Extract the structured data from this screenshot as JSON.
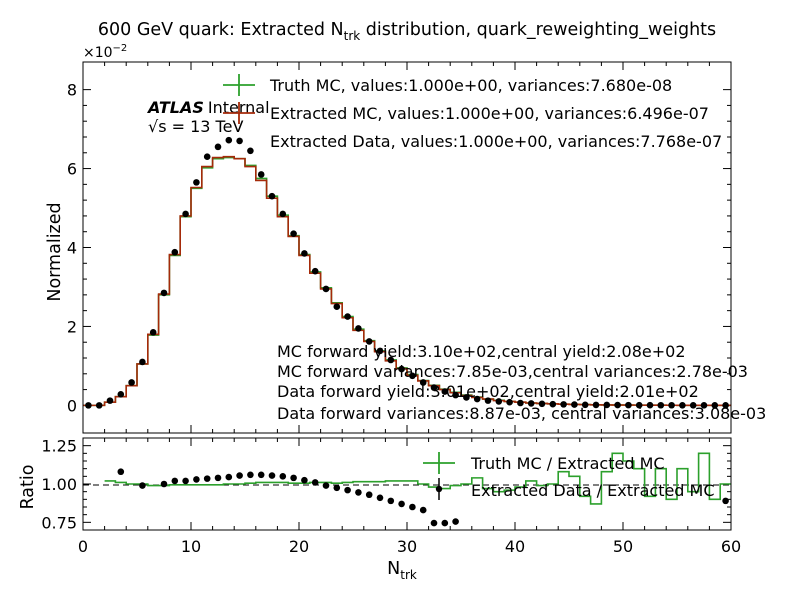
{
  "figure": {
    "title_pre": "600 GeV quark: Extracted N",
    "title_sub": "trk",
    "title_post": " distribution, quark_reweighting_weights",
    "exponent_base": "×10",
    "exponent_power": "−2",
    "atlas_label": "ATLAS",
    "atlas_status": "Internal",
    "energy_label": "√s = 13 TeV",
    "xlabel_main": "N",
    "xlabel_sub": "trk",
    "top_ylabel": "Normalized",
    "bottom_ylabel": "Ratio",
    "legend_top": [
      "Truth MC, values:1.000e+00, variances:7.680e-08",
      "Extracted MC, values:1.000e+00, variances:6.496e-07",
      "Extracted Data, values:1.000e+00, variances:7.768e-07"
    ],
    "legend_bottom": [
      "Truth MC / Extracted MC",
      "Extracted Data / Extracted MC"
    ],
    "annotations": [
      "MC forward yield:3.10e+02,central yield:2.08e+02",
      "MC forward variances:7.85e-03,central variances:2.78e-03",
      "Data forward yield:3.01e+02,central yield:2.01e+02",
      "Data forward variances:8.87e-03, central variances:3.08e-03"
    ]
  },
  "colors": {
    "truth_mc": "#2ca02c",
    "extracted_mc": "#a52a0a",
    "extracted_data": "#000000",
    "ref_line": "#000000"
  },
  "chart_data": [
    {
      "type": "line",
      "panel": "main",
      "x_bin_edges": [
        0,
        1,
        2,
        3,
        4,
        5,
        6,
        7,
        8,
        9,
        10,
        11,
        12,
        13,
        14,
        15,
        16,
        17,
        18,
        19,
        20,
        21,
        22,
        23,
        24,
        25,
        26,
        27,
        28,
        29,
        30,
        31,
        32,
        33,
        34,
        35,
        36,
        37,
        38,
        39,
        40,
        41,
        42,
        43,
        44,
        45,
        46,
        47,
        48,
        49,
        50,
        51,
        52,
        53,
        54,
        55,
        56,
        57,
        58,
        59,
        60
      ],
      "xlim": [
        0,
        60
      ],
      "ylim": [
        -0.7,
        8.7
      ],
      "y_scale_note": "×10^-2",
      "yticks": [
        0,
        2,
        4,
        6,
        8
      ],
      "xticks": [
        0,
        10,
        20,
        30,
        40,
        50,
        60
      ],
      "series": [
        {
          "name": "Truth MC",
          "style": "step",
          "values": [
            0,
            0,
            0.08,
            0.22,
            0.5,
            1.05,
            1.78,
            2.8,
            3.8,
            4.78,
            5.5,
            6.02,
            6.25,
            6.28,
            6.25,
            6.08,
            5.75,
            5.3,
            4.82,
            4.3,
            3.82,
            3.38,
            2.98,
            2.6,
            2.25,
            1.93,
            1.64,
            1.38,
            1.15,
            0.95,
            0.78,
            0.63,
            0.51,
            0.41,
            0.33,
            0.26,
            0.21,
            0.16,
            0.13,
            0.1,
            0.08,
            0.06,
            0.05,
            0.04,
            0.03,
            0.025,
            0.02,
            0.015,
            0.012,
            0.01,
            0.008,
            0.006,
            0.005,
            0.004,
            0.003,
            0.002,
            0.002,
            0.001,
            0.001,
            0.001
          ]
        },
        {
          "name": "Extracted MC",
          "style": "step",
          "values": [
            0,
            0,
            0.08,
            0.22,
            0.5,
            1.05,
            1.8,
            2.82,
            3.82,
            4.8,
            5.52,
            6.05,
            6.28,
            6.3,
            6.25,
            6.05,
            5.7,
            5.25,
            4.78,
            4.28,
            3.8,
            3.35,
            2.95,
            2.58,
            2.22,
            1.9,
            1.62,
            1.36,
            1.13,
            0.93,
            0.76,
            0.62,
            0.5,
            0.4,
            0.32,
            0.25,
            0.2,
            0.16,
            0.12,
            0.1,
            0.08,
            0.06,
            0.05,
            0.04,
            0.03,
            0.024,
            0.019,
            0.015,
            0.012,
            0.009,
            0.007,
            0.006,
            0.005,
            0.004,
            0.003,
            0.002,
            0.002,
            0.001,
            0.001,
            0.001
          ]
        },
        {
          "name": "Extracted Data",
          "style": "points",
          "values": [
            0,
            0,
            0.12,
            0.28,
            0.58,
            1.1,
            1.85,
            2.85,
            3.88,
            4.85,
            5.65,
            6.3,
            6.55,
            6.72,
            6.7,
            6.45,
            5.85,
            5.3,
            4.85,
            4.35,
            3.85,
            3.4,
            2.95,
            2.5,
            2.25,
            1.95,
            1.62,
            1.38,
            1.15,
            0.92,
            0.75,
            0.58,
            0.45,
            0.35,
            0.26,
            0.2,
            0.16,
            0.12,
            0.1,
            0.08,
            0.06,
            0.05,
            0.04,
            0.03,
            0.025,
            0.02,
            0.015,
            0.012,
            0.01,
            0.008,
            0.006,
            0.005,
            0.004,
            0.003,
            0.003,
            0.002,
            0.002,
            0.001,
            0.001,
            0.001
          ]
        }
      ]
    },
    {
      "type": "line",
      "panel": "ratio",
      "x_bin_edges": [
        0,
        1,
        2,
        3,
        4,
        5,
        6,
        7,
        8,
        9,
        10,
        11,
        12,
        13,
        14,
        15,
        16,
        17,
        18,
        19,
        20,
        21,
        22,
        23,
        24,
        25,
        26,
        27,
        28,
        29,
        30,
        31,
        32,
        33,
        34,
        35,
        36,
        37,
        38,
        39,
        40,
        41,
        42,
        43,
        44,
        45,
        46,
        47,
        48,
        49,
        50,
        51,
        52,
        53,
        54,
        55,
        56,
        57,
        58,
        59,
        60
      ],
      "xlim": [
        0,
        60
      ],
      "ylim": [
        0.7,
        1.3
      ],
      "yticks": [
        0.75,
        1.0,
        1.25
      ],
      "reference_line": 1.0,
      "series": [
        {
          "name": "Truth MC / Extracted MC",
          "style": "step",
          "values": [
            null,
            null,
            1.02,
            1.01,
            1.0,
            1.0,
            0.99,
            0.99,
            0.995,
            0.995,
            0.995,
            0.995,
            0.995,
            1.0,
            1.0,
            1.005,
            1.01,
            1.01,
            1.01,
            1.005,
            1.005,
            1.01,
            1.01,
            1.005,
            1.01,
            1.015,
            1.015,
            1.015,
            1.02,
            1.02,
            1.02,
            1.0,
            0.98,
            0.97,
            0.99,
            1.0,
            1.04,
            0.97,
            0.95,
            0.96,
            0.98,
            1.02,
            0.99,
            1.0,
            1.08,
            1.05,
            0.92,
            0.87,
            1.08,
            1.2,
            1.15,
            1.1,
            0.92,
            1.1,
            0.9,
            1.1,
            0.95,
            1.2,
            0.9,
            1.0
          ]
        },
        {
          "name": "Extracted Data / Extracted MC",
          "style": "points",
          "points": [
            [
              3.5,
              1.08
            ],
            [
              5.5,
              0.99
            ],
            [
              7.5,
              1.0
            ],
            [
              8.5,
              1.02
            ],
            [
              9.5,
              1.02
            ],
            [
              10.5,
              1.03
            ],
            [
              11.5,
              1.035
            ],
            [
              12.5,
              1.04
            ],
            [
              13.5,
              1.045
            ],
            [
              14.5,
              1.055
            ],
            [
              15.5,
              1.06
            ],
            [
              16.5,
              1.06
            ],
            [
              17.5,
              1.055
            ],
            [
              18.5,
              1.05
            ],
            [
              19.5,
              1.04
            ],
            [
              20.5,
              1.025
            ],
            [
              21.5,
              1.01
            ],
            [
              22.5,
              0.99
            ],
            [
              23.5,
              0.975
            ],
            [
              24.5,
              0.96
            ],
            [
              25.5,
              0.945
            ],
            [
              26.5,
              0.93
            ],
            [
              27.5,
              0.91
            ],
            [
              28.5,
              0.89
            ],
            [
              29.5,
              0.87
            ],
            [
              30.5,
              0.85
            ],
            [
              31.5,
              0.83
            ],
            [
              32.5,
              0.745
            ],
            [
              33.5,
              0.745
            ],
            [
              34.5,
              0.755
            ],
            [
              59.5,
              0.89
            ]
          ]
        }
      ]
    }
  ]
}
